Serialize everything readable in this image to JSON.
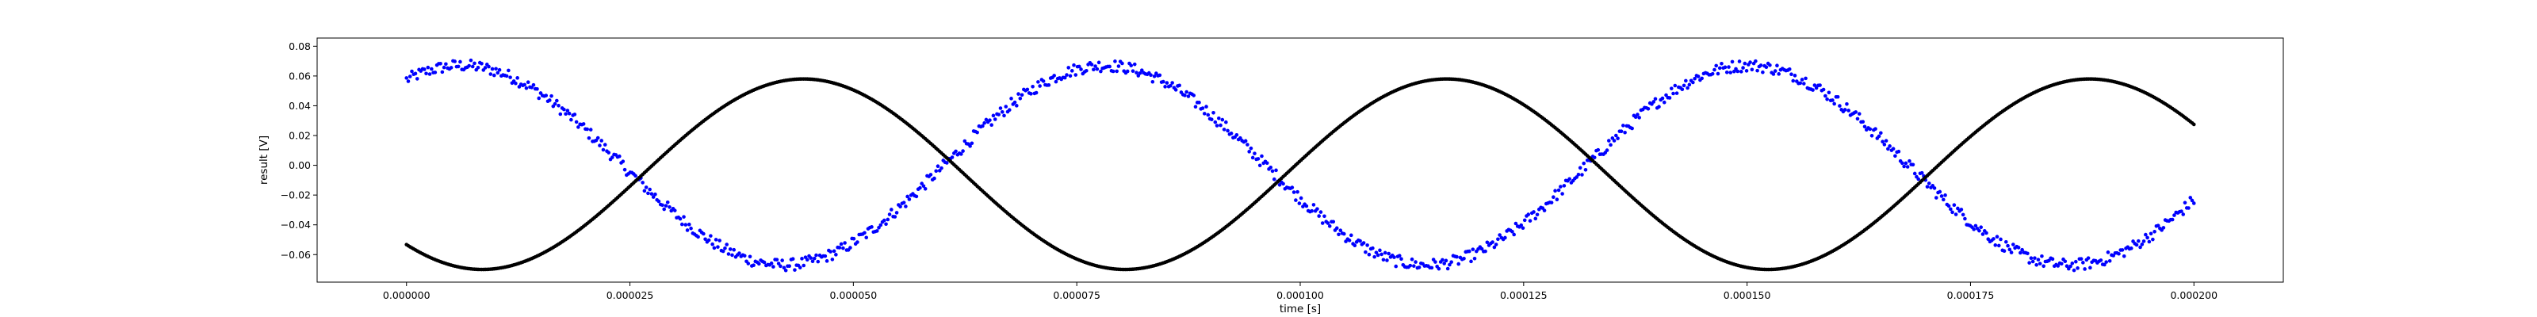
{
  "chart_data": {
    "type": "scatter",
    "title": "",
    "xlabel": "time [s]",
    "ylabel": "result [V]",
    "xlim": [
      -1e-05,
      0.00021
    ],
    "ylim": [
      -0.0785,
      0.0855
    ],
    "x_ticks": [
      0.0,
      2.5e-05,
      5e-05,
      7.5e-05,
      0.0001,
      0.000125,
      0.00015,
      0.000175,
      0.0002
    ],
    "x_tick_labels": [
      "0.000000",
      "0.000025",
      "0.000050",
      "0.000075",
      "0.000100",
      "0.000125",
      "0.000150",
      "0.000175",
      "0.000200"
    ],
    "y_ticks": [
      -0.06,
      -0.04,
      -0.02,
      0.0,
      0.02,
      0.04,
      0.06,
      0.08
    ],
    "y_tick_labels": [
      "−0.06",
      "−0.04",
      "−0.02",
      "0.00",
      "0.02",
      "0.04",
      "0.06",
      "0.08"
    ],
    "grid": false,
    "series": [
      {
        "color": "#0000ff",
        "marker": "dot",
        "model": "noisy_sine",
        "amplitude": 0.067,
        "frequency_hz": 13900,
        "phase_rad": 1.03,
        "offset": 0.0,
        "noise": 0.004,
        "t_start": 0.0,
        "t_end": 0.0002,
        "n_points": 1000
      },
      {
        "color": "#000000",
        "marker": "dot",
        "model": "sine",
        "amplitude": 0.064,
        "frequency_hz": 13900,
        "phase_rad": -2.31,
        "offset": -0.006,
        "noise": 0.0,
        "t_start": 0.0,
        "t_end": 0.0002,
        "n_points": 1000
      }
    ]
  }
}
